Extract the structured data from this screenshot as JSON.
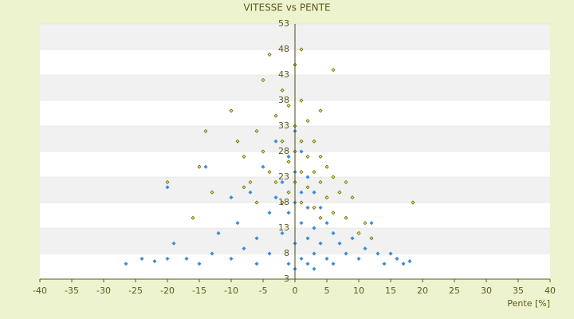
{
  "chart_data": {
    "type": "scatter",
    "title": "VITESSE vs PENTE",
    "x_label": "Pente [%]",
    "xlim": [
      -40,
      40
    ],
    "xticks": [
      -40,
      -35,
      -30,
      -25,
      -20,
      -15,
      -10,
      -5,
      0,
      5,
      10,
      15,
      20,
      25,
      30,
      35,
      40
    ],
    "ylim": [
      3,
      53
    ],
    "yticks": [
      3,
      8,
      13,
      18,
      23,
      28,
      33,
      38,
      43,
      48,
      53
    ],
    "grid": true,
    "series": [
      {
        "color": "#3a8fd9",
        "x": [
          -26.5,
          -24,
          -22,
          -20,
          -19,
          -17,
          -15,
          -13,
          -12,
          -10,
          -9,
          -8,
          -7,
          -6,
          -5,
          -4,
          -4,
          -3,
          -3,
          -2,
          -2,
          -1,
          -1,
          -1,
          0,
          0,
          0,
          0,
          0,
          1,
          1,
          1,
          1,
          2,
          2,
          2,
          2,
          3,
          3,
          3,
          4,
          4,
          5,
          5,
          6,
          6,
          7,
          8,
          9,
          10,
          11,
          12,
          13,
          14,
          15,
          16,
          17,
          18,
          3,
          -6,
          -10,
          -14,
          -20
        ],
        "values": [
          6,
          7,
          6.5,
          7,
          10,
          7,
          6,
          8,
          12,
          7,
          14,
          9,
          20,
          11,
          25,
          16,
          8,
          30,
          19,
          22,
          12,
          27,
          16,
          6,
          32,
          24,
          18,
          10,
          5,
          28,
          20,
          14,
          7,
          23,
          17,
          11,
          6,
          20,
          13,
          8,
          17,
          10,
          14,
          7,
          12,
          6,
          10,
          8,
          11,
          7,
          9,
          14,
          8,
          6,
          8,
          7,
          6,
          6.5,
          5,
          6,
          19,
          25,
          21
        ]
      },
      {
        "color": "#6b6b10",
        "x": [
          -20,
          -16,
          -15,
          -14,
          -13,
          -10,
          -9,
          -8,
          -7,
          -6,
          -6,
          -5,
          -5,
          -4,
          -4,
          -3,
          -3,
          -2,
          -2,
          -2,
          -1,
          -1,
          -1,
          0,
          0,
          0,
          0,
          1,
          1,
          1,
          1,
          1,
          2,
          2,
          2,
          3,
          3,
          3,
          4,
          4,
          4,
          5,
          5,
          6,
          6,
          6,
          7,
          8,
          8,
          9,
          10,
          11,
          12,
          18.5,
          4,
          -8
        ],
        "values": [
          22,
          15,
          25,
          32,
          20,
          36,
          30,
          27,
          22,
          32,
          18,
          42,
          28,
          24,
          47,
          35,
          22,
          40,
          30,
          18,
          37,
          26,
          20,
          45,
          33,
          28,
          22,
          48,
          38,
          30,
          24,
          18,
          34,
          27,
          21,
          30,
          24,
          17,
          27,
          22,
          15,
          25,
          19,
          44,
          23,
          16,
          20,
          22,
          15,
          19,
          12,
          14,
          11,
          18,
          36,
          21
        ]
      }
    ]
  }
}
